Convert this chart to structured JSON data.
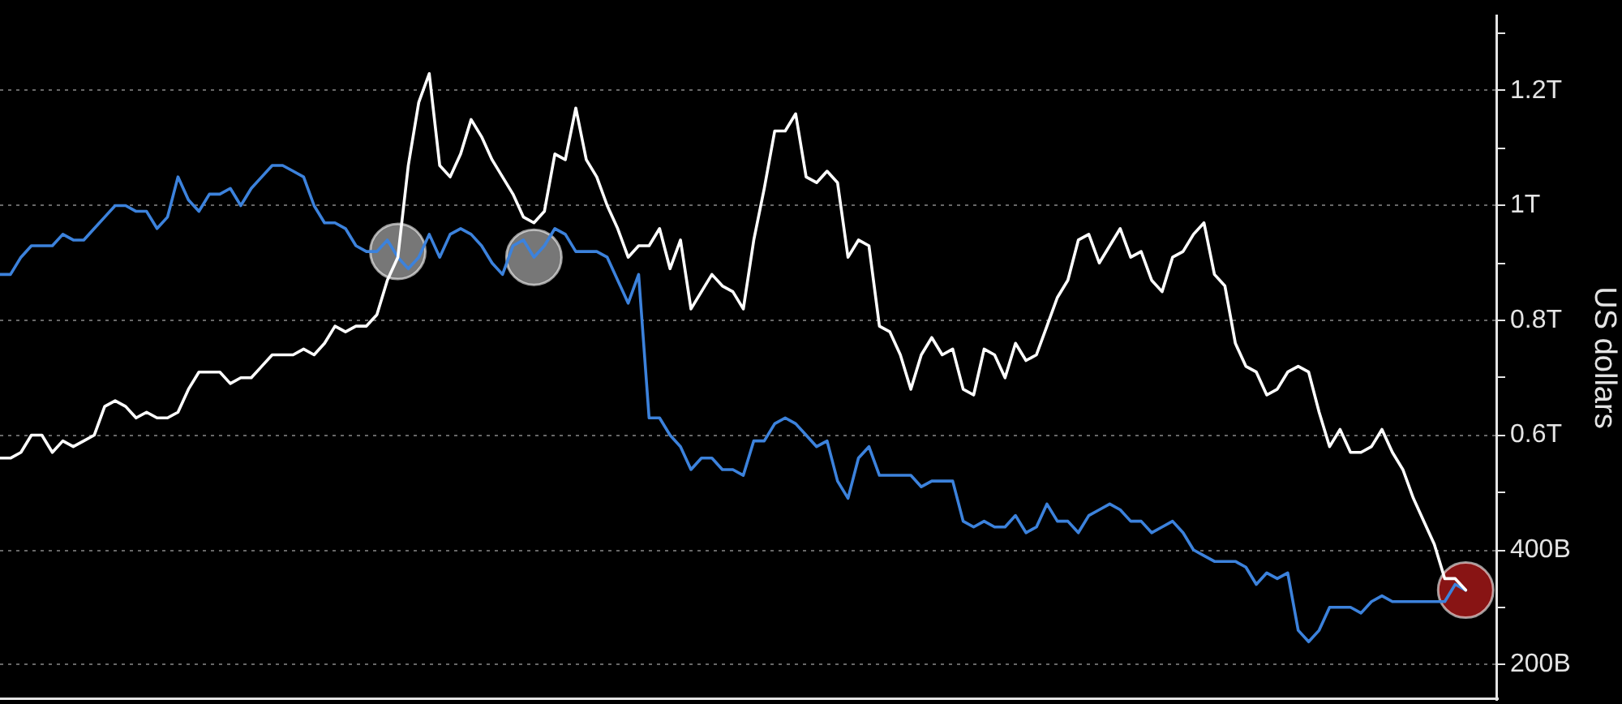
{
  "chart_data": {
    "type": "line",
    "ylabel": "US dollars",
    "grid": "y",
    "tick_labels": "y",
    "marker": "none",
    "ylim": [
      140000000000.0,
      1330000000000.0
    ],
    "yticks": [
      {
        "value": 200000000000.0,
        "label": "200B"
      },
      {
        "value": 300000000000.0,
        "label": null
      },
      {
        "value": 400000000000.0,
        "label": "400B"
      },
      {
        "value": 500000000000.0,
        "label": null
      },
      {
        "value": 600000000000.0,
        "label": "0.6T"
      },
      {
        "value": 700000000000.0,
        "label": null
      },
      {
        "value": 800000000000.0,
        "label": "0.8T"
      },
      {
        "value": 900000000000.0,
        "label": null
      },
      {
        "value": 1000000000000.0,
        "label": "1T"
      },
      {
        "value": 1100000000000.0,
        "label": null
      },
      {
        "value": 1200000000000.0,
        "label": "1.2T"
      },
      {
        "value": 1300000000000.0,
        "label": null
      }
    ],
    "categories": [
      null,
      null,
      null,
      null,
      null,
      null,
      null,
      null,
      null,
      null,
      null,
      null,
      null,
      null,
      null,
      null,
      null,
      null,
      null,
      null,
      null,
      null,
      null,
      null,
      null,
      null,
      null,
      null,
      null,
      null,
      null,
      null,
      null,
      null,
      null,
      null,
      null,
      null,
      null,
      null,
      null,
      null,
      null,
      null,
      null,
      null,
      null,
      null,
      null,
      null,
      null,
      null,
      null,
      null,
      null,
      null,
      null,
      null,
      null,
      null,
      null,
      null,
      null,
      null,
      null,
      null,
      null,
      null,
      null,
      null,
      null,
      null,
      null,
      null,
      null,
      null,
      null,
      null,
      null,
      null,
      null,
      null,
      null,
      null,
      null,
      null,
      null,
      null,
      null,
      null,
      null,
      null,
      null,
      null,
      null,
      null,
      null,
      null,
      null,
      null,
      null,
      null,
      null,
      null,
      null,
      null,
      null,
      null,
      null,
      null,
      null,
      null,
      null,
      null,
      null,
      null,
      null,
      null,
      null,
      null,
      null,
      null,
      null,
      null,
      null,
      null,
      null,
      null,
      null,
      null,
      null,
      null,
      null,
      null,
      null,
      null,
      null,
      null,
      null,
      null,
      null,
      null,
      null,
      null
    ],
    "series": [
      {
        "color": "#ffffff",
        "values": [
          560000000000.0,
          560000000000.0,
          570000000000.0,
          600000000000.0,
          600000000000.0,
          570000000000.0,
          590000000000.0,
          580000000000.0,
          590000000000.0,
          600000000000.0,
          650000000000.0,
          660000000000.0,
          650000000000.0,
          630000000000.0,
          640000000000.0,
          630000000000.0,
          630000000000.0,
          640000000000.0,
          680000000000.0,
          710000000000.0,
          710000000000.0,
          710000000000.0,
          690000000000.0,
          700000000000.0,
          700000000000.0,
          720000000000.0,
          740000000000.0,
          740000000000.0,
          740000000000.0,
          750000000000.0,
          740000000000.0,
          760000000000.0,
          790000000000.0,
          780000000000.0,
          790000000000.0,
          790000000000.0,
          810000000000.0,
          870000000000.0,
          910000000000.0,
          1070000000000.0,
          1180000000000.0,
          1230000000000.0,
          1070000000000.0,
          1050000000000.0,
          1090000000000.0,
          1150000000000.0,
          1120000000000.0,
          1080000000000.0,
          1050000000000.0,
          1020000000000.0,
          980000000000.0,
          970000000000.0,
          990000000000.0,
          1090000000000.0,
          1080000000000.0,
          1170000000000.0,
          1080000000000.0,
          1050000000000.0,
          1000000000000.0,
          960000000000.0,
          910000000000.0,
          930000000000.0,
          930000000000.0,
          960000000000.0,
          890000000000.0,
          940000000000.0,
          820000000000.0,
          850000000000.0,
          880000000000.0,
          860000000000.0,
          850000000000.0,
          820000000000.0,
          940000000000.0,
          1030000000000.0,
          1130000000000.0,
          1130000000000.0,
          1160000000000.0,
          1050000000000.0,
          1040000000000.0,
          1060000000000.0,
          1040000000000.0,
          910000000000.0,
          940000000000.0,
          930000000000.0,
          790000000000.0,
          780000000000.0,
          740000000000.0,
          680000000000.0,
          740000000000.0,
          770000000000.0,
          740000000000.0,
          750000000000.0,
          680000000000.0,
          670000000000.0,
          750000000000.0,
          740000000000.0,
          700000000000.0,
          760000000000.0,
          730000000000.0,
          740000000000.0,
          790000000000.0,
          840000000000.0,
          870000000000.0,
          940000000000.0,
          950000000000.0,
          900000000000.0,
          930000000000.0,
          960000000000.0,
          910000000000.0,
          920000000000.0,
          870000000000.0,
          850000000000.0,
          910000000000.0,
          920000000000.0,
          950000000000.0,
          970000000000.0,
          880000000000.0,
          860000000000.0,
          760000000000.0,
          720000000000.0,
          710000000000.0,
          670000000000.0,
          680000000000.0,
          710000000000.0,
          720000000000.0,
          710000000000.0,
          640000000000.0,
          580000000000.0,
          610000000000.0,
          570000000000.0,
          570000000000.0,
          580000000000.0,
          610000000000.0,
          570000000000.0,
          540000000000.0,
          490000000000.0,
          450000000000.0,
          410000000000.0,
          350000000000.0,
          350000000000.0,
          330000000000.0,
          null,
          null,
          null
        ]
      },
      {
        "color": "#3c82dc",
        "values": [
          880000000000.0,
          880000000000.0,
          910000000000.0,
          930000000000.0,
          930000000000.0,
          930000000000.0,
          950000000000.0,
          940000000000.0,
          940000000000.0,
          960000000000.0,
          980000000000.0,
          1000000000000.0,
          1000000000000.0,
          990000000000.0,
          990000000000.0,
          960000000000.0,
          980000000000.0,
          1050000000000.0,
          1010000000000.0,
          990000000000.0,
          1020000000000.0,
          1020000000000.0,
          1030000000000.0,
          1000000000000.0,
          1030000000000.0,
          1050000000000.0,
          1070000000000.0,
          1070000000000.0,
          1060000000000.0,
          1050000000000.0,
          1000000000000.0,
          970000000000.0,
          970000000000.0,
          960000000000.0,
          930000000000.0,
          920000000000.0,
          920000000000.0,
          940000000000.0,
          910000000000.0,
          890000000000.0,
          910000000000.0,
          950000000000.0,
          910000000000.0,
          950000000000.0,
          960000000000.0,
          950000000000.0,
          930000000000.0,
          900000000000.0,
          880000000000.0,
          930000000000.0,
          940000000000.0,
          910000000000.0,
          930000000000.0,
          960000000000.0,
          950000000000.0,
          920000000000.0,
          920000000000.0,
          920000000000.0,
          910000000000.0,
          870000000000.0,
          830000000000.0,
          880000000000.0,
          630000000000.0,
          630000000000.0,
          600000000000.0,
          580000000000.0,
          540000000000.0,
          560000000000.0,
          560000000000.0,
          540000000000.0,
          540000000000.0,
          530000000000.0,
          590000000000.0,
          590000000000.0,
          620000000000.0,
          630000000000.0,
          620000000000.0,
          600000000000.0,
          580000000000.0,
          590000000000.0,
          520000000000.0,
          490000000000.0,
          560000000000.0,
          580000000000.0,
          530000000000.0,
          530000000000.0,
          530000000000.0,
          530000000000.0,
          510000000000.0,
          520000000000.0,
          520000000000.0,
          520000000000.0,
          450000000000.0,
          440000000000.0,
          450000000000.0,
          440000000000.0,
          440000000000.0,
          460000000000.0,
          430000000000.0,
          440000000000.0,
          480000000000.0,
          450000000000.0,
          450000000000.0,
          430000000000.0,
          460000000000.0,
          470000000000.0,
          480000000000.0,
          470000000000.0,
          450000000000.0,
          450000000000.0,
          430000000000.0,
          440000000000.0,
          450000000000.0,
          430000000000.0,
          400000000000.0,
          390000000000.0,
          380000000000.0,
          380000000000.0,
          380000000000.0,
          370000000000.0,
          340000000000.0,
          360000000000.0,
          350000000000.0,
          360000000000.0,
          260000000000.0,
          240000000000.0,
          260000000000.0,
          300000000000.0,
          300000000000.0,
          300000000000.0,
          290000000000.0,
          310000000000.0,
          320000000000.0,
          310000000000.0,
          310000000000.0,
          310000000000.0,
          310000000000.0,
          310000000000.0,
          310000000000.0,
          340000000000.0,
          330000000000.0,
          null,
          null,
          null
        ]
      },
      {
        "type": "scatter",
        "marker": "circle",
        "color": "#8c8c8c",
        "values": [
          null,
          null,
          null,
          null,
          null,
          null,
          null,
          null,
          null,
          null,
          null,
          null,
          null,
          null,
          null,
          null,
          null,
          null,
          null,
          null,
          null,
          null,
          null,
          null,
          null,
          null,
          null,
          null,
          null,
          null,
          null,
          null,
          null,
          null,
          null,
          null,
          null,
          null,
          920000000000.0,
          null,
          null,
          null,
          null,
          null,
          null,
          null,
          null,
          null,
          null,
          null,
          null,
          910000000000.0,
          null,
          null,
          null,
          null,
          null,
          null,
          null,
          null,
          null,
          null,
          null,
          null,
          null,
          null,
          null,
          null,
          null,
          null,
          null,
          null,
          null,
          null,
          null,
          null,
          null,
          null,
          null,
          null,
          null,
          null,
          null,
          null,
          null,
          null,
          null,
          null,
          null,
          null,
          null,
          null,
          null,
          null,
          null,
          null,
          null,
          null,
          null,
          null,
          null,
          null,
          null,
          null,
          null,
          null,
          null,
          null,
          null,
          null,
          null,
          null,
          null,
          null,
          null,
          null,
          null,
          null,
          null,
          null,
          null,
          null,
          null,
          null,
          null,
          null,
          null,
          null,
          null,
          null,
          null,
          null,
          null,
          null,
          null,
          null,
          null,
          null,
          null,
          null,
          null,
          null,
          null,
          null
        ]
      },
      {
        "type": "scatter",
        "marker": "circle",
        "color": "#a01818",
        "values": [
          null,
          null,
          null,
          null,
          null,
          null,
          null,
          null,
          null,
          null,
          null,
          null,
          null,
          null,
          null,
          null,
          null,
          null,
          null,
          null,
          null,
          null,
          null,
          null,
          null,
          null,
          null,
          null,
          null,
          null,
          null,
          null,
          null,
          null,
          null,
          null,
          null,
          null,
          null,
          null,
          null,
          null,
          null,
          null,
          null,
          null,
          null,
          null,
          null,
          null,
          null,
          null,
          null,
          null,
          null,
          null,
          null,
          null,
          null,
          null,
          null,
          null,
          null,
          null,
          null,
          null,
          null,
          null,
          null,
          null,
          null,
          null,
          null,
          null,
          null,
          null,
          null,
          null,
          null,
          null,
          null,
          null,
          null,
          null,
          null,
          null,
          null,
          null,
          null,
          null,
          null,
          null,
          null,
          null,
          null,
          null,
          null,
          null,
          null,
          null,
          null,
          null,
          null,
          null,
          null,
          null,
          null,
          null,
          null,
          null,
          null,
          null,
          null,
          null,
          null,
          null,
          null,
          null,
          null,
          null,
          null,
          null,
          null,
          null,
          null,
          null,
          null,
          null,
          null,
          null,
          null,
          null,
          null,
          null,
          null,
          null,
          null,
          null,
          null,
          null,
          330000000000.0,
          null,
          null,
          null
        ]
      }
    ]
  }
}
